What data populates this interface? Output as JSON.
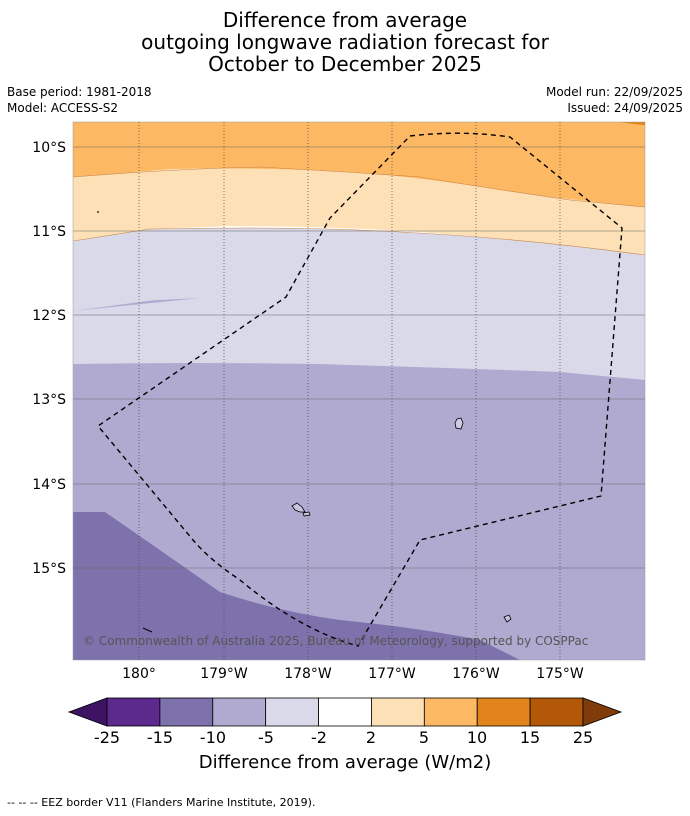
{
  "title": {
    "line1": "Difference from average",
    "line2": "outgoing longwave radiation forecast for",
    "line3": "October to December 2025"
  },
  "meta": {
    "base_period": "Base period: 1981-2018",
    "model": "Model: ACCESS-S2",
    "model_run": "Model run: 22/09/2025",
    "issued": "Issued: 24/09/2025"
  },
  "map": {
    "lat_labels": [
      "10°S",
      "11°S",
      "12°S",
      "13°S",
      "14°S",
      "15°S"
    ],
    "lon_labels": [
      "180°",
      "179°W",
      "178°W",
      "177°W",
      "176°W",
      "175°W"
    ],
    "copyright": "© Commonwealth of Australia 2025, Bureau of Meteorology, supported by COSPPac"
  },
  "colorbar": {
    "ticks": [
      "-25",
      "-15",
      "-10",
      "-5",
      "-2",
      "2",
      "5",
      "10",
      "15",
      "25"
    ],
    "colors": [
      "#3f1364",
      "#5b2a8c",
      "#7e72ad",
      "#b0aad1",
      "#d9d9ea",
      "#ffffff",
      "#fde0b5",
      "#fdb863",
      "#e1841b",
      "#b35806",
      "#7f3b08"
    ],
    "label": "Difference from average (W/m2)"
  },
  "legend": {
    "eez_line": "--  --  -- EEZ border V11 (Flanders Marine Institute, 2019)."
  }
}
